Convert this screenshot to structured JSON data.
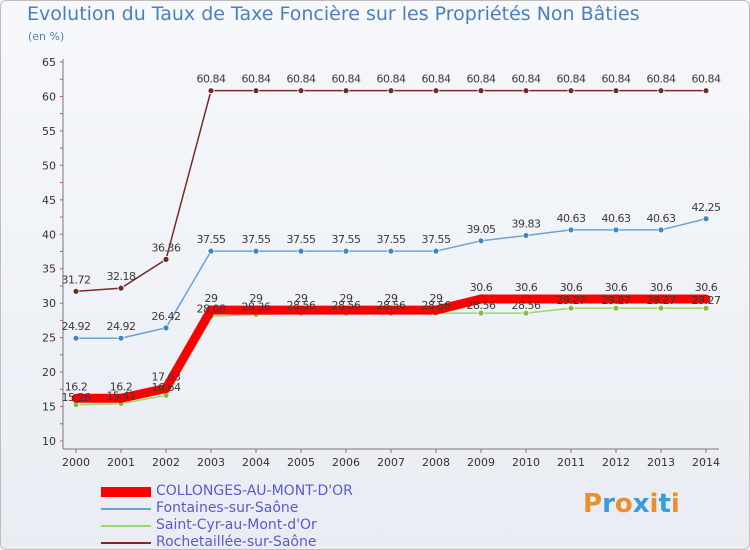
{
  "header": {
    "title": "Evolution du Taux de Taxe Foncière sur les Propriétés Non Bâties",
    "unit": "(en %)"
  },
  "brand": {
    "text": "Proxiti",
    "colors": [
      "#e8902c",
      "#3b9be0",
      "#e8902c",
      "#3b9be0",
      "#e8902c",
      "#3b9be0",
      "#e8902c"
    ]
  },
  "chart_data": {
    "type": "line",
    "title": "Evolution du Taux de Taxe Foncière sur les Propriétés Non Bâties",
    "ylabel": "(en %)",
    "xlabel": "",
    "ylim": [
      10,
      65
    ],
    "yticks": [
      10,
      15,
      20,
      25,
      30,
      35,
      40,
      45,
      50,
      55,
      60,
      65
    ],
    "grid": false,
    "legend_position": "bottom-left",
    "x": [
      "2000",
      "2001",
      "2002",
      "2003",
      "2004",
      "2005",
      "2006",
      "2007",
      "2008",
      "2009",
      "2010",
      "2011",
      "2012",
      "2013",
      "2014"
    ],
    "series": [
      {
        "name": "Rochetaillée-sur-Saône",
        "color": "#7a2a2a",
        "marker": "#6e2a2a",
        "values": [
          31.72,
          32.18,
          36.36,
          60.84,
          60.84,
          60.84,
          60.84,
          60.84,
          60.84,
          60.84,
          60.84,
          60.84,
          60.84,
          60.84,
          60.84
        ],
        "labels": [
          "31.72",
          "32.18",
          "36.36",
          "60.84",
          "60.84",
          "60.84",
          "60.84",
          "60.84",
          "60.84",
          "60.84",
          "60.84",
          "60.84",
          "60.84",
          "60.84",
          "60.84"
        ]
      },
      {
        "name": "Fontaines-sur-Saône",
        "color": "#6aa3d8",
        "marker": "#3d85c6",
        "values": [
          24.92,
          24.92,
          26.42,
          37.55,
          37.55,
          37.55,
          37.55,
          37.55,
          37.55,
          39.05,
          39.83,
          40.63,
          40.63,
          40.63,
          42.25
        ],
        "labels": [
          "24.92",
          "24.92",
          "26.42",
          "37.55",
          "37.55",
          "37.55",
          "37.55",
          "37.55",
          "37.55",
          "39.05",
          "39.83",
          "40.63",
          "40.63",
          "40.63",
          "42.25"
        ]
      },
      {
        "name": "Saint-Cyr-au-Mont-d'Or",
        "color": "#9ad86a",
        "marker": "#7cc241",
        "values": [
          15.26,
          15.41,
          16.64,
          28.08,
          28.36,
          28.56,
          28.56,
          28.56,
          28.56,
          28.56,
          28.56,
          29.27,
          29.27,
          29.27,
          29.27
        ],
        "labels": [
          "15.26",
          "15.41",
          "16.64",
          "28.08",
          "28.36",
          "28.56",
          "28.56",
          "28.56",
          "28.56",
          "28.56",
          "28.56",
          "29.27",
          "29.27",
          "29.27",
          "29.27"
        ]
      },
      {
        "name": "COLLONGES-AU-MONT-D'OR",
        "color": "#ff0000",
        "marker": "#ff0000",
        "values": [
          16.2,
          16.2,
          17.63,
          29,
          29,
          29,
          29,
          29,
          29,
          30.6,
          30.6,
          30.6,
          30.6,
          30.6,
          30.6
        ],
        "labels": [
          "16.2",
          "16.2",
          "17.63",
          "29",
          "29",
          "29",
          "29",
          "29",
          "29",
          "30.6",
          "30.6",
          "30.6",
          "30.6",
          "30.6",
          "30.6"
        ]
      }
    ],
    "legend": [
      {
        "name": "COLLONGES-AU-MONT-D'OR",
        "color": "#ff0000",
        "thickness": "thick"
      },
      {
        "name": "Fontaines-sur-Saône",
        "color": "#6aa3d8",
        "thickness": "thin"
      },
      {
        "name": "Saint-Cyr-au-Mont-d'Or",
        "color": "#9ad86a",
        "thickness": "thin"
      },
      {
        "name": "Rochetaillée-sur-Saône",
        "color": "#7a2a2a",
        "thickness": "thin"
      }
    ]
  }
}
